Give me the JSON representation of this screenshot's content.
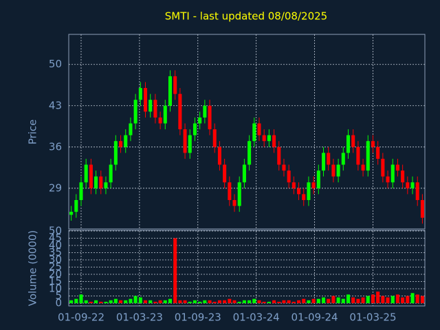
{
  "chart_data": [
    {
      "type": "candlestick",
      "title": "SMTI - last updated 08/08/2025",
      "ylabel": "Price",
      "up_color": "#00ff00",
      "down_color": "#ff0000",
      "grid": true,
      "open": [
        24.5,
        25,
        27,
        30,
        33,
        29,
        31,
        29,
        30,
        33,
        37,
        36,
        38,
        40,
        44,
        46,
        42,
        44,
        41,
        40,
        43,
        48,
        45,
        39,
        35,
        38,
        40,
        41,
        43,
        39,
        36,
        33,
        30,
        27,
        26,
        30,
        33,
        37,
        40,
        38,
        37,
        38,
        36,
        33,
        32,
        30,
        29,
        28,
        27,
        30,
        29,
        32,
        35,
        33,
        31,
        33,
        35,
        38,
        36,
        33,
        32,
        37,
        36,
        34,
        31,
        30,
        33,
        32,
        30,
        29,
        30,
        27
      ],
      "high": [
        26,
        28,
        31,
        34,
        34,
        32,
        32,
        31,
        34,
        38,
        38,
        39,
        41,
        45,
        47,
        47,
        45,
        45,
        42,
        44,
        49,
        49,
        46,
        40,
        39,
        41,
        42,
        44,
        44,
        40,
        37,
        34,
        31,
        28,
        31,
        34,
        38,
        41,
        41,
        39,
        39,
        39,
        37,
        34,
        33,
        31,
        30,
        29,
        31,
        31,
        33,
        36,
        36,
        34,
        34,
        36,
        39,
        39,
        37,
        34,
        38,
        38,
        37,
        35,
        32,
        34,
        34,
        33,
        31,
        31,
        31,
        28
      ],
      "low": [
        23.5,
        24,
        26,
        29,
        28,
        28,
        28,
        28,
        29,
        32,
        35,
        35,
        37,
        39,
        43,
        41,
        41,
        40,
        39,
        39,
        42,
        44,
        38,
        34,
        34,
        37,
        39,
        40,
        38,
        35,
        32,
        29,
        26,
        25,
        25,
        29,
        32,
        36,
        37,
        36,
        36,
        35,
        32,
        31,
        29,
        28,
        27,
        26,
        26,
        28,
        28,
        31,
        32,
        30,
        30,
        32,
        34,
        35,
        32,
        31,
        31,
        35,
        33,
        30,
        29,
        29,
        31,
        29,
        28,
        28,
        26,
        23
      ],
      "close": [
        25,
        27,
        30,
        33,
        29,
        31,
        29,
        30,
        33,
        37,
        36,
        38,
        40,
        44,
        46,
        42,
        44,
        41,
        40,
        43,
        48,
        45,
        39,
        35,
        38,
        40,
        41,
        43,
        39,
        36,
        33,
        30,
        27,
        26,
        30,
        33,
        37,
        40,
        38,
        37,
        38,
        36,
        33,
        32,
        30,
        29,
        28,
        27,
        30,
        29,
        32,
        35,
        33,
        31,
        33,
        35,
        38,
        36,
        33,
        32,
        37,
        36,
        34,
        31,
        30,
        33,
        32,
        30,
        29,
        30,
        27,
        24
      ],
      "xlim": [
        -0.5,
        71.5
      ],
      "ylim": [
        22.1,
        55.1
      ],
      "yticks": [
        29,
        36,
        43,
        50
      ]
    },
    {
      "type": "bar",
      "ylabel": "Volume (0000)",
      "grid": true,
      "values": [
        2,
        3,
        6,
        2,
        1,
        2,
        1,
        1,
        2,
        3,
        2,
        2,
        3,
        5,
        4,
        2,
        2,
        1,
        2,
        2,
        3,
        45,
        2,
        2,
        1,
        2,
        1,
        2,
        2,
        1,
        2,
        2,
        3,
        2,
        1,
        2,
        2,
        3,
        2,
        1,
        1,
        2,
        1,
        2,
        2,
        1,
        2,
        3,
        2,
        3,
        3,
        4,
        3,
        5,
        4,
        3,
        6,
        4,
        3,
        4,
        5,
        6,
        8,
        5,
        4,
        5,
        6,
        4,
        5,
        7,
        6,
        5
      ],
      "xlim": [
        -0.5,
        71.5
      ],
      "ylim": [
        0,
        50
      ],
      "yticks": [
        0,
        5,
        10,
        15,
        20,
        25,
        30,
        35,
        40,
        45,
        50
      ],
      "xticks": [
        {
          "value": 2,
          "label": "01-09-22"
        },
        {
          "value": 13.8,
          "label": "01-03-23"
        },
        {
          "value": 25.6,
          "label": "01-09-23"
        },
        {
          "value": 37.4,
          "label": "01-03-24"
        },
        {
          "value": 49.2,
          "label": "01-09-24"
        },
        {
          "value": 61,
          "label": "01-03-25"
        }
      ]
    }
  ]
}
